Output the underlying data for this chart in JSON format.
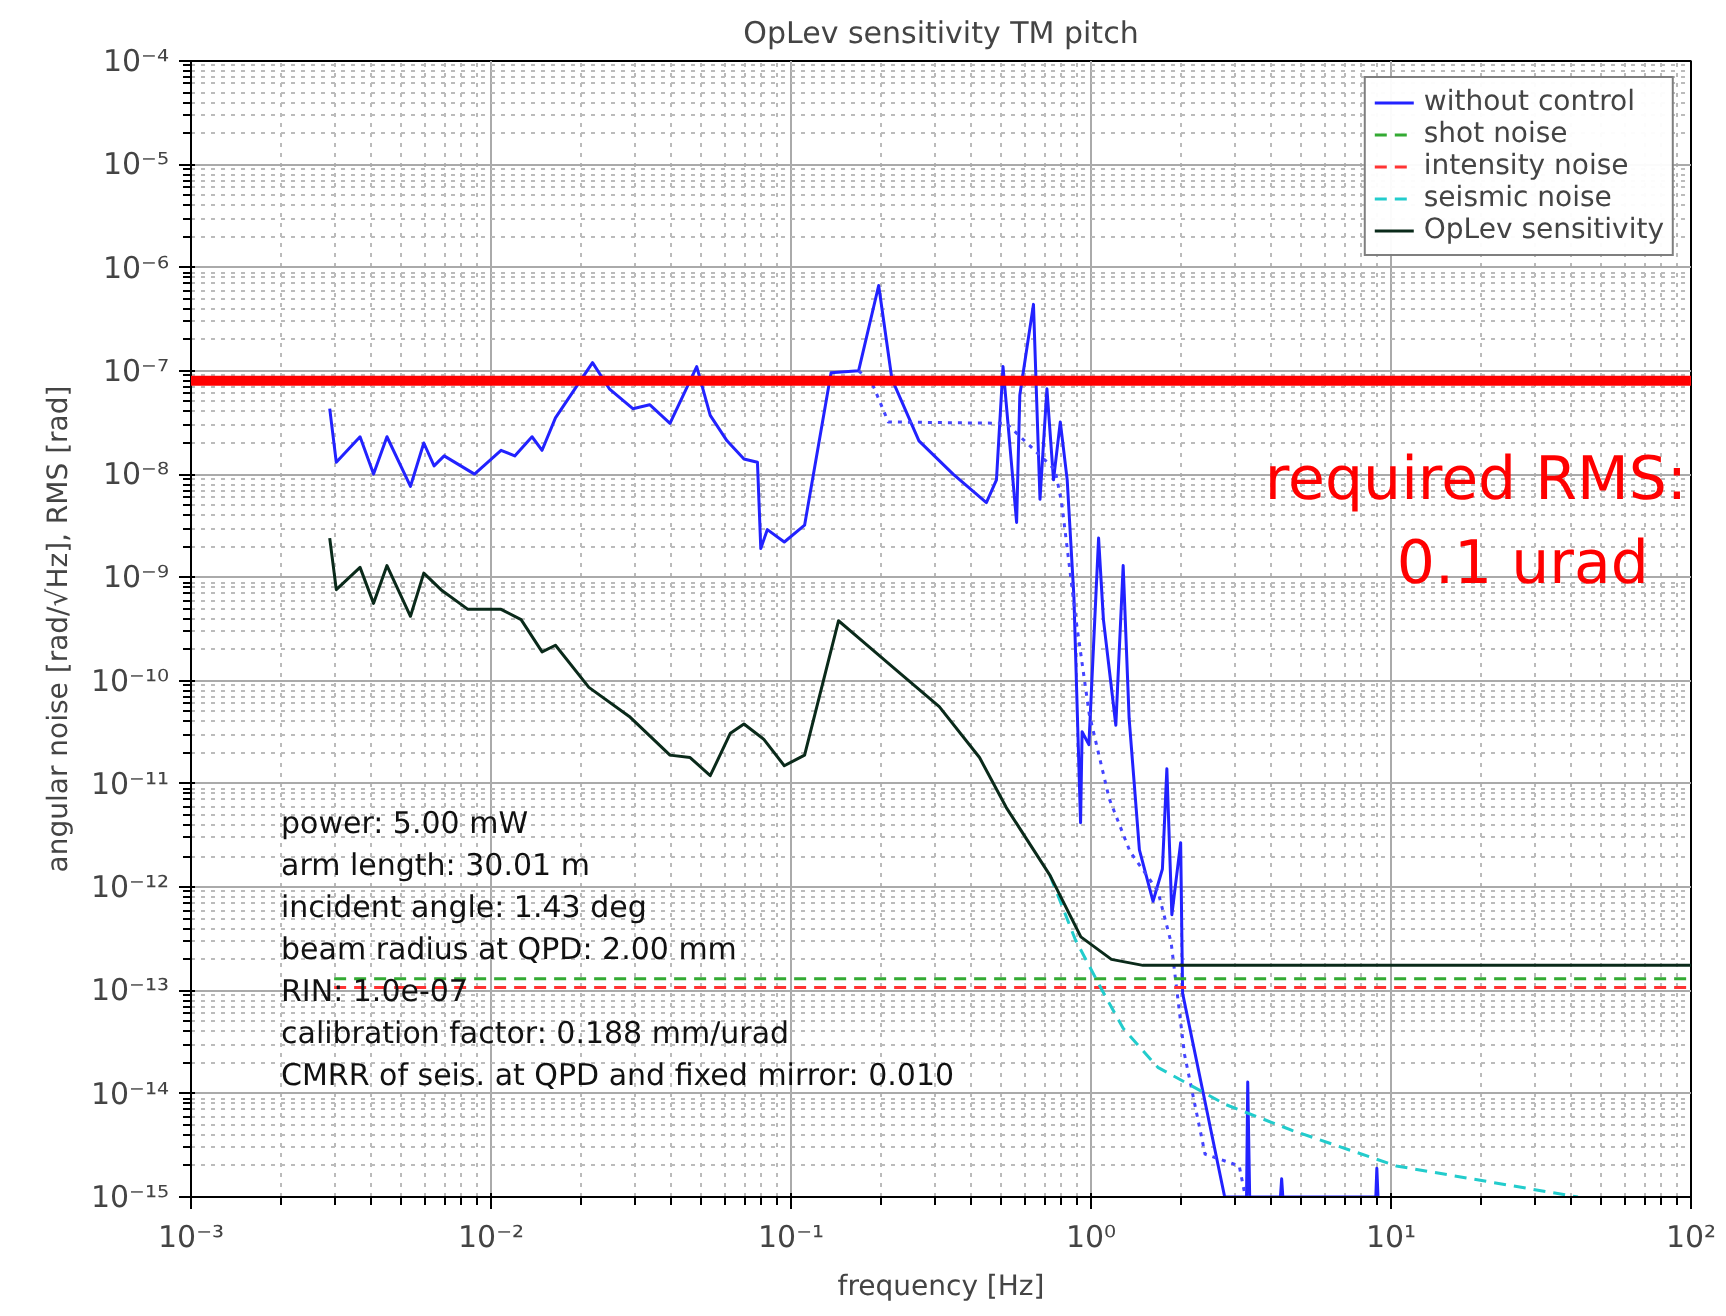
{
  "chart_data": {
    "type": "line",
    "title": "OpLev sensitivity TM pitch",
    "xlabel": "frequency [Hz]",
    "ylabel": "angular noise [rad/√Hz], RMS [rad]",
    "log": "xy",
    "grid": true,
    "legend": "top right",
    "marker": "none",
    "xlim": [
      0.001,
      100
    ],
    "ylim": [
      1e-15,
      0.0001
    ],
    "xticks": [
      {
        "value": 0.001,
        "label": "10⁻³"
      },
      {
        "value": 0.01,
        "label": "10⁻²"
      },
      {
        "value": 0.1,
        "label": "10⁻¹"
      },
      {
        "value": 1,
        "label": "10⁰"
      },
      {
        "value": 10,
        "label": "10¹"
      },
      {
        "value": 100,
        "label": "10²"
      }
    ],
    "yticks": [
      {
        "value": 1e-15,
        "label": "10⁻¹⁵"
      },
      {
        "value": 1e-14,
        "label": "10⁻¹⁴"
      },
      {
        "value": 1e-13,
        "label": "10⁻¹³"
      },
      {
        "value": 1e-12,
        "label": "10⁻¹²"
      },
      {
        "value": 1e-11,
        "label": "10⁻¹¹"
      },
      {
        "value": 1e-10,
        "label": "10⁻¹⁰"
      },
      {
        "value": 1e-09,
        "label": "10⁻⁹"
      },
      {
        "value": 1e-08,
        "label": "10⁻⁸"
      },
      {
        "value": 1e-07,
        "label": "10⁻⁷"
      },
      {
        "value": 1e-06,
        "label": "10⁻⁶"
      },
      {
        "value": 1e-05,
        "label": "10⁻⁵"
      },
      {
        "value": 0.0001,
        "label": "10⁻⁴"
      }
    ],
    "series": [
      {
        "name": "without control",
        "color": "#2222ff",
        "line_style": "solid",
        "x": [
          0.0029,
          0.00305,
          0.00366,
          0.00406,
          0.0045,
          0.00539,
          0.00597,
          0.00646,
          0.00698,
          0.00881,
          0.0108,
          0.012,
          0.0137,
          0.0148,
          0.0164,
          0.0218,
          0.0248,
          0.0297,
          0.0338,
          0.0395,
          0.0485,
          0.0538,
          0.0612,
          0.0697,
          0.0773,
          0.0793,
          0.0834,
          0.095,
          0.111,
          0.136,
          0.168,
          0.196,
          0.217,
          0.267,
          0.347,
          0.448,
          0.484,
          0.509,
          0.565,
          0.579,
          0.643,
          0.676,
          0.713,
          0.75,
          0.79,
          0.833,
          0.877,
          0.923,
          0.934,
          0.984,
          1.06,
          1.1,
          1.21,
          1.28,
          1.34,
          1.45,
          1.61,
          1.73,
          1.79,
          1.86,
          1.99,
          2.02,
          2.79,
          3.3,
          3.33,
          3.38,
          4.28,
          4.32,
          4.36,
          8.9,
          8.97,
          9.05
        ],
        "values": [
          4.3e-08,
          1.3e-08,
          2.3e-08,
          1e-08,
          2.3e-08,
          7.6e-09,
          2e-08,
          1.2e-08,
          1.5e-08,
          1e-08,
          1.7e-08,
          1.5e-08,
          2.3e-08,
          1.7e-08,
          3.5e-08,
          1.2e-07,
          6.7e-08,
          4.3e-08,
          4.7e-08,
          3.1e-08,
          1.1e-07,
          3.7e-08,
          2.1e-08,
          1.4e-08,
          1.3e-08,
          1.9e-09,
          2.9e-09,
          2.2e-09,
          3.2e-09,
          9.6e-08,
          1e-07,
          6.7e-07,
          8.3e-08,
          2.1e-08,
          1e-08,
          5.3e-09,
          8.8e-09,
          1.1e-07,
          3.4e-09,
          5.8e-08,
          4.4e-07,
          5.7e-09,
          6.7e-08,
          8.8e-09,
          3.2e-08,
          8.8e-09,
          6.5e-10,
          4.2e-12,
          3.2e-11,
          2.4e-11,
          2.4e-09,
          3.9e-10,
          3.7e-11,
          1.3e-09,
          4.3e-11,
          2.3e-12,
          7.3e-13,
          1.5e-12,
          1.4e-11,
          5.4e-13,
          2.7e-12,
          9.4e-14,
          1e-15,
          1e-15,
          1.3e-14,
          1e-15,
          1e-15,
          1.5e-15,
          1e-15,
          1e-15,
          1.9e-15,
          1e-15
        ]
      },
      {
        "color": "#4444ff",
        "line_style": "dotted",
        "x": [
          0.168,
          0.186,
          0.211,
          0.522,
          0.759,
          0.798,
          0.887,
          0.986,
          1.15,
          1.35,
          1.67,
          1.85,
          2.05,
          2.4,
          3.12,
          3.27
        ],
        "values": [
          1e-07,
          7.7e-08,
          3.2e-08,
          3.1e-08,
          1.1e-08,
          5.3e-09,
          4.3e-10,
          4.8e-11,
          7.2e-12,
          2.2e-12,
          9.2e-13,
          2.9e-13,
          2.4e-14,
          2.6e-15,
          2e-15,
          1e-15
        ]
      },
      {
        "name": "shot noise",
        "color": "#33aa33",
        "line_style": "dashed",
        "x": [
          0.003,
          100
        ],
        "values": [
          1.3e-13,
          1.3e-13
        ]
      },
      {
        "name": "intensity noise",
        "color": "#ff3333",
        "line_style": "dashed",
        "x": [
          0.003,
          100
        ],
        "values": [
          1.07e-13,
          1.07e-13
        ]
      },
      {
        "name": "seismic noise",
        "color": "#22cccc",
        "line_style": "dashed",
        "x": [
          0.73,
          0.887,
          1.09,
          1.28,
          1.67,
          2.8,
          4.7,
          10.4,
          42
        ],
        "values": [
          1.3e-12,
          3.1e-13,
          1e-13,
          4.3e-14,
          1.8e-14,
          7.9e-15,
          4.4e-15,
          2e-15,
          1e-15
        ]
      },
      {
        "name": "OpLev sensitivity",
        "color": "#0a2a1a",
        "line_style": "solid",
        "x": [
          0.0029,
          0.00305,
          0.00366,
          0.00406,
          0.0045,
          0.00539,
          0.00597,
          0.00681,
          0.00838,
          0.0108,
          0.0126,
          0.0148,
          0.0164,
          0.0212,
          0.0289,
          0.0395,
          0.0461,
          0.0538,
          0.0628,
          0.0697,
          0.0812,
          0.095,
          0.111,
          0.144,
          0.168,
          0.229,
          0.312,
          0.425,
          0.522,
          0.73,
          0.925,
          1.17,
          1.49,
          100
        ],
        "values": [
          2.4e-09,
          7.6e-10,
          1.25e-09,
          5.6e-10,
          1.3e-09,
          4.2e-10,
          1.1e-09,
          7.6e-10,
          4.9e-10,
          4.9e-10,
          3.9e-10,
          1.9e-10,
          2.2e-10,
          8.6e-11,
          4.5e-11,
          1.9e-11,
          1.8e-11,
          1.2e-11,
          3.1e-11,
          3.8e-11,
          2.7e-11,
          1.5e-11,
          1.9e-11,
          3.8e-10,
          2.6e-10,
          1.2e-10,
          5.6e-11,
          1.8e-11,
          5.9e-12,
          1.3e-12,
          3.3e-13,
          2e-13,
          1.75e-13,
          1.75e-13
        ]
      }
    ],
    "ref_lines": [
      {
        "axis": "y",
        "value": 8e-08,
        "label": "required RMS:\n  0.1 urad",
        "color": "#ff0000"
      }
    ],
    "annotations": [
      "power: 5.00 mW",
      "arm length: 30.01 m",
      "incident angle: 1.43 deg",
      "beam radius at QPD: 2.00 mm",
      "RIN: 1.0e-07",
      "calibration factor: 0.188 mm/urad",
      "CMRR of seis. at QPD and fixed mirror: 0.010"
    ]
  }
}
